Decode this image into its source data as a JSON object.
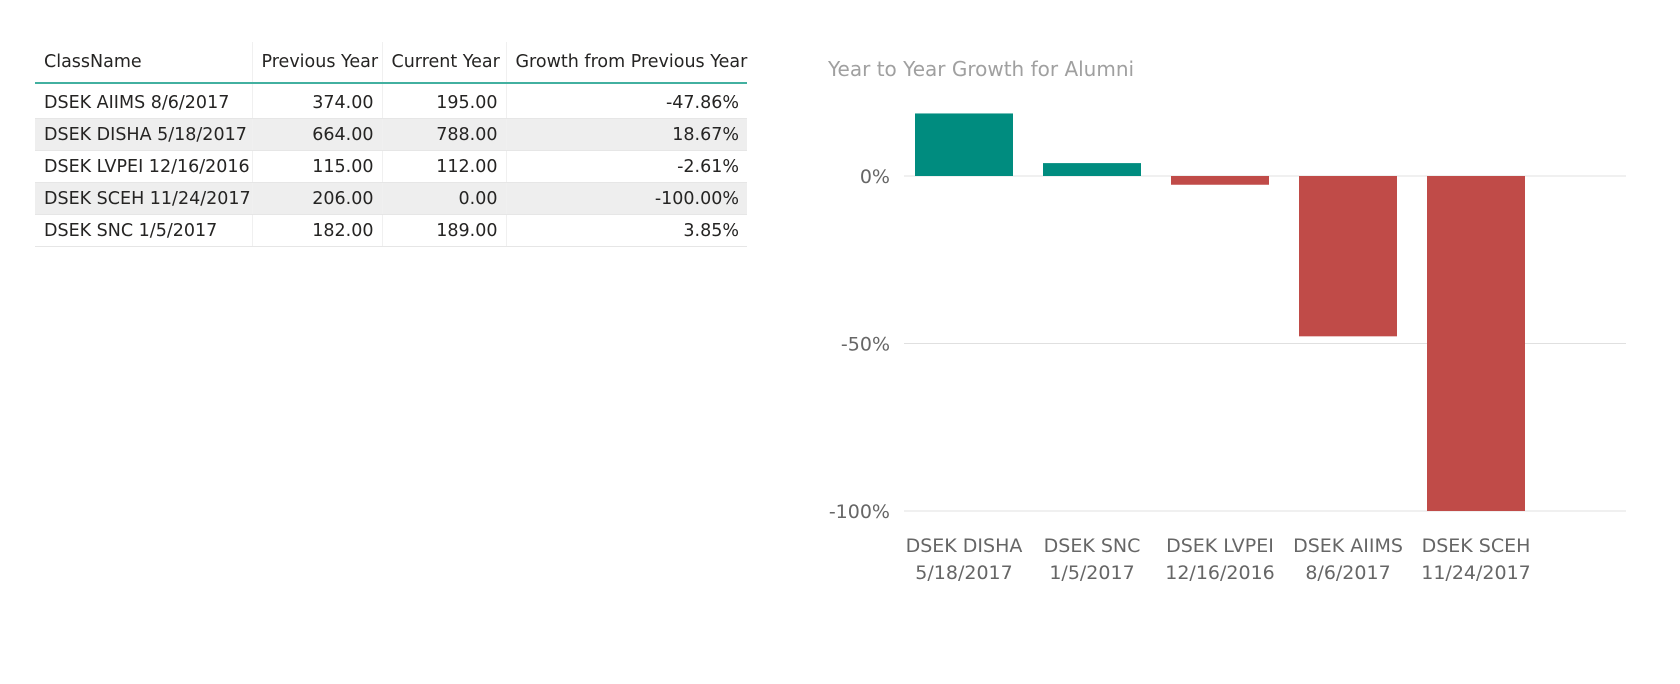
{
  "table": {
    "headers": [
      "ClassName",
      "Previous Year",
      "Current Year",
      "Growth from Previous Year"
    ],
    "rows": [
      {
        "class_name": "DSEK AIIMS 8/6/2017",
        "previous_year": "374.00",
        "current_year": "195.00",
        "growth": "-47.86%"
      },
      {
        "class_name": "DSEK DISHA 5/18/2017",
        "previous_year": "664.00",
        "current_year": "788.00",
        "growth": "18.67%"
      },
      {
        "class_name": "DSEK LVPEI 12/16/2016",
        "previous_year": "115.00",
        "current_year": "112.00",
        "growth": "-2.61%"
      },
      {
        "class_name": "DSEK SCEH 11/24/2017",
        "previous_year": "206.00",
        "current_year": "0.00",
        "growth": "-100.00%"
      },
      {
        "class_name": "DSEK SNC 1/5/2017",
        "previous_year": "182.00",
        "current_year": "189.00",
        "growth": "3.85%"
      }
    ]
  },
  "chart_data": {
    "type": "bar",
    "title": "Year to Year Growth for Alumni",
    "xlabel": "",
    "ylabel": "",
    "categories": [
      [
        "DSEK DISHA",
        "5/18/2017"
      ],
      [
        "DSEK SNC",
        "1/5/2017"
      ],
      [
        "DSEK LVPEI",
        "12/16/2016"
      ],
      [
        "DSEK AIIMS",
        "8/6/2017"
      ],
      [
        "DSEK SCEH",
        "11/24/2017"
      ]
    ],
    "values": [
      18.67,
      3.85,
      -2.61,
      -47.86,
      -100.0
    ],
    "unit": "%",
    "ylim": [
      -100,
      20
    ],
    "yticks": [
      0,
      -50,
      -100
    ],
    "ytick_labels": [
      "0%",
      "-50%",
      "-100%"
    ],
    "grid": true,
    "legend": "none",
    "colors": {
      "positive": "#008c7f",
      "negative": "#c04b48",
      "gridline": "#e0e0e0",
      "header_rule": "#42b0a0",
      "alt_row": "#eeeeee"
    }
  }
}
